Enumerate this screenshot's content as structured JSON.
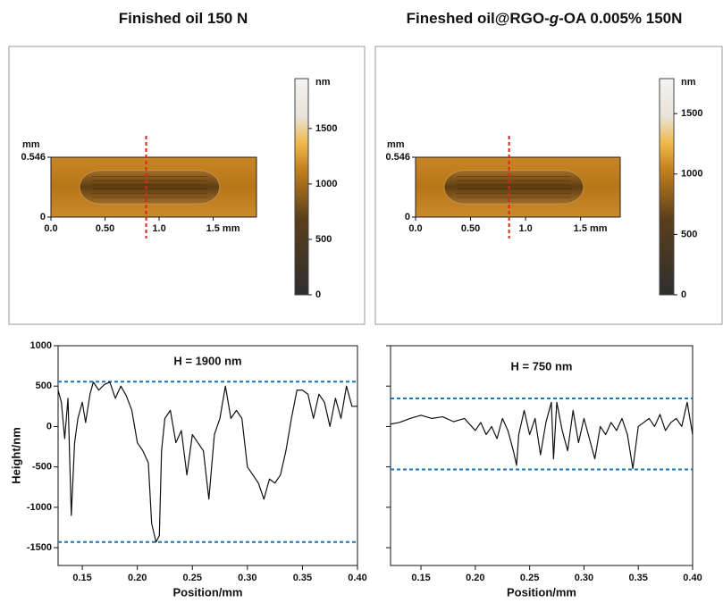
{
  "columns": [
    {
      "title": [
        {
          "text": "Finished oil 150 N"
        }
      ],
      "image": {
        "xlim": [
          0,
          1.9
        ],
        "xticks": [
          {
            "value": 0,
            "label": "0.0"
          },
          {
            "value": 0.5,
            "label": "0.50"
          },
          {
            "value": 1,
            "label": "1.0"
          },
          {
            "value": 1.5,
            "label": "1.5 mm"
          }
        ],
        "ylim": [
          0,
          0.546
        ],
        "yticks": [
          0,
          0.546
        ],
        "y_unit": "mm",
        "cut_x": 0.88,
        "cut_color": "#e8201c",
        "colorbar": {
          "unit": "nm",
          "lim": [
            0,
            1950
          ],
          "ticks": [
            0,
            500,
            1000,
            1500
          ]
        }
      }
    },
    {
      "title": [
        {
          "text": "Fineshed oil@RGO-"
        },
        {
          "text": "g",
          "italic": true
        },
        {
          "text": "-OA 0.005% 150N"
        }
      ],
      "image": {
        "xlim": [
          0,
          1.86
        ],
        "xticks": [
          {
            "value": 0,
            "label": "0.0"
          },
          {
            "value": 0.5,
            "label": "0.50"
          },
          {
            "value": 1,
            "label": "1.0"
          },
          {
            "value": 1.5,
            "label": "1.5 mm"
          }
        ],
        "ylim": [
          0,
          0.546
        ],
        "yticks": [
          0,
          0.546
        ],
        "y_unit": "mm",
        "cut_x": 0.85,
        "cut_color": "#e8201c",
        "colorbar": {
          "unit": "nm",
          "lim": [
            0,
            1790
          ],
          "ticks": [
            0,
            500,
            1000,
            1500
          ]
        }
      }
    }
  ],
  "chart_data": [
    {
      "type": "line",
      "annotation": "H = 1900 nm",
      "xlabel": "Position/mm",
      "ylabel": "Height/nm",
      "color": "#111111",
      "xlim": [
        0.128,
        0.4
      ],
      "xticks": [
        0.15,
        {
          "value": 0.2,
          "label": "0.20"
        },
        0.25,
        {
          "value": 0.3,
          "label": "0.30"
        },
        0.35,
        {
          "value": 0.4,
          "label": "0.40"
        }
      ],
      "ylim": [
        -1720,
        1000
      ],
      "yticks": [
        1000,
        500,
        0,
        -500,
        -1000,
        -1500
      ],
      "ytick_labels": true,
      "hlines": [
        {
          "value": 555,
          "color": "#1a74b8"
        },
        {
          "value": -1430,
          "color": "#1a74b8"
        }
      ],
      "x": [
        0.128,
        0.131,
        0.134,
        0.137,
        0.14,
        0.143,
        0.146,
        0.15,
        0.153,
        0.157,
        0.16,
        0.165,
        0.17,
        0.175,
        0.18,
        0.185,
        0.19,
        0.195,
        0.2,
        0.205,
        0.21,
        0.213,
        0.217,
        0.22,
        0.222,
        0.225,
        0.23,
        0.235,
        0.24,
        0.245,
        0.25,
        0.255,
        0.26,
        0.265,
        0.27,
        0.275,
        0.28,
        0.285,
        0.29,
        0.295,
        0.3,
        0.305,
        0.31,
        0.315,
        0.32,
        0.325,
        0.33,
        0.335,
        0.34,
        0.345,
        0.35,
        0.355,
        0.36,
        0.365,
        0.37,
        0.375,
        0.38,
        0.385,
        0.39,
        0.395,
        0.4
      ],
      "values": [
        450,
        300,
        -150,
        350,
        -1100,
        -200,
        100,
        300,
        50,
        400,
        550,
        450,
        520,
        550,
        350,
        500,
        380,
        200,
        -200,
        -300,
        -450,
        -1200,
        -1430,
        -1350,
        -300,
        100,
        200,
        -200,
        -50,
        -600,
        -100,
        -200,
        -300,
        -900,
        -100,
        100,
        500,
        100,
        200,
        100,
        -500,
        -600,
        -700,
        -900,
        -650,
        -700,
        -600,
        -300,
        100,
        450,
        450,
        400,
        100,
        400,
        300,
        0,
        350,
        100,
        500,
        250,
        250
      ]
    },
    {
      "type": "line",
      "annotation": "H = 750 nm",
      "xlabel": "Position/mm",
      "color": "#111111",
      "xlim": [
        0.122,
        0.4
      ],
      "xticks": [
        0.15,
        {
          "value": 0.2,
          "label": "0.20"
        },
        0.25,
        {
          "value": 0.3,
          "label": "0.30"
        },
        0.35,
        {
          "value": 0.4,
          "label": "0.40"
        }
      ],
      "ylim": [
        -1720,
        1000
      ],
      "yticks": [
        1000,
        500,
        0,
        -500,
        -1000,
        -1500
      ],
      "ytick_labels": false,
      "hlines": [
        {
          "value": 347,
          "color": "#1a74b8"
        },
        {
          "value": -531,
          "color": "#1a74b8"
        }
      ],
      "x": [
        0.122,
        0.13,
        0.14,
        0.15,
        0.16,
        0.17,
        0.18,
        0.19,
        0.2,
        0.205,
        0.21,
        0.215,
        0.22,
        0.225,
        0.23,
        0.235,
        0.238,
        0.24,
        0.245,
        0.25,
        0.255,
        0.26,
        0.265,
        0.27,
        0.272,
        0.275,
        0.28,
        0.285,
        0.29,
        0.295,
        0.3,
        0.305,
        0.31,
        0.315,
        0.32,
        0.325,
        0.33,
        0.335,
        0.34,
        0.345,
        0.35,
        0.355,
        0.36,
        0.365,
        0.37,
        0.375,
        0.38,
        0.385,
        0.39,
        0.395,
        0.4
      ],
      "values": [
        30,
        50,
        100,
        140,
        100,
        120,
        60,
        100,
        -50,
        50,
        -100,
        0,
        -150,
        100,
        -50,
        -300,
        -480,
        -100,
        200,
        -100,
        100,
        -350,
        50,
        300,
        -400,
        300,
        -50,
        -300,
        200,
        -200,
        100,
        -150,
        -400,
        0,
        -100,
        50,
        -50,
        100,
        -100,
        -520,
        0,
        50,
        100,
        0,
        150,
        -50,
        50,
        100,
        0,
        300,
        -100
      ]
    }
  ]
}
